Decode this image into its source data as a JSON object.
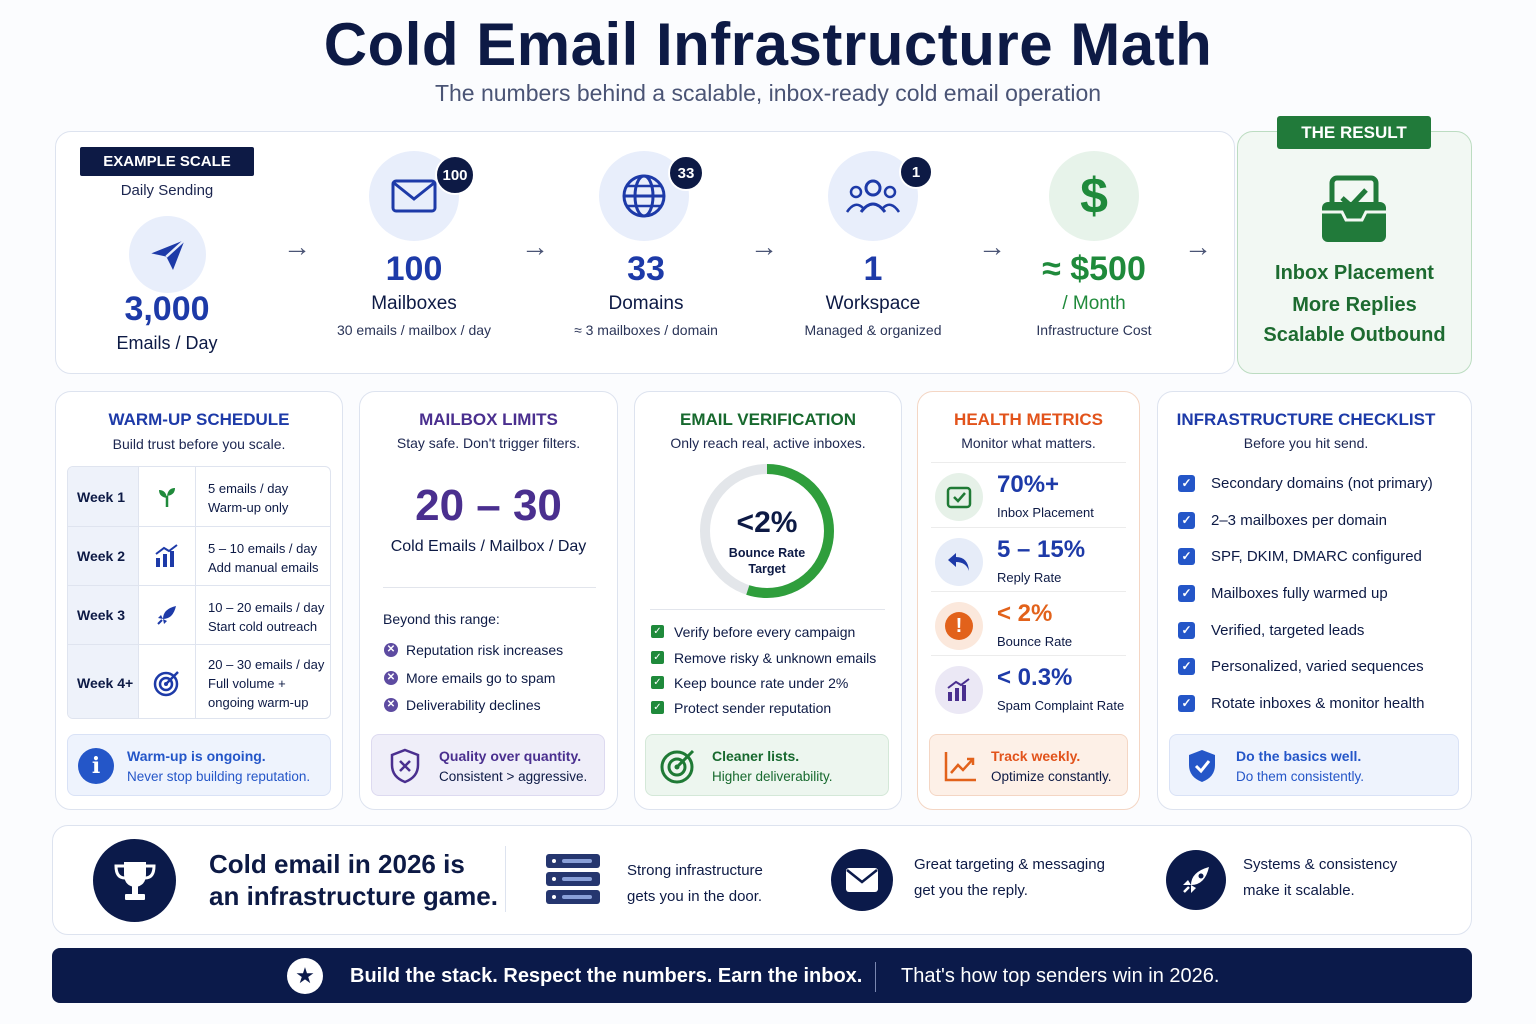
{
  "header": {
    "title": "Cold Email Infrastructure Math",
    "subtitle": "The numbers behind a scalable, inbox-ready cold email operation"
  },
  "example_scale": {
    "badge": "EXAMPLE SCALE",
    "label": "Daily Sending",
    "value": "3,000",
    "unit": "Emails / Day"
  },
  "pipeline": [
    {
      "icon": "envelope-icon",
      "badge": "100",
      "value": "100",
      "label": "Mailboxes",
      "sub": "30 emails / mailbox / day"
    },
    {
      "icon": "globe-icon",
      "badge": "33",
      "value": "33",
      "label": "Domains",
      "sub": "≈ 3 mailboxes / domain"
    },
    {
      "icon": "users-icon",
      "badge": "1",
      "value": "1",
      "label": "Workspace",
      "sub": "Managed & organized"
    },
    {
      "icon": "dollar-icon",
      "value": "≈ $500",
      "label": "/ Month",
      "sub": "Infrastructure Cost"
    }
  ],
  "result": {
    "badge": "THE RESULT",
    "lines": [
      "Inbox Placement",
      "More Replies",
      "Scalable Outbound"
    ]
  },
  "warmup": {
    "title": "WARM-UP SCHEDULE",
    "subtitle": "Build trust before you scale.",
    "rows": [
      {
        "week": "Week 1",
        "icon": "sprout-icon",
        "line1": "5 emails / day",
        "line2": "Warm-up only",
        "line3": ""
      },
      {
        "week": "Week 2",
        "icon": "bar-chart-icon",
        "line1": "5 – 10 emails / day",
        "line2": "Add manual emails",
        "line3": ""
      },
      {
        "week": "Week 3",
        "icon": "rocket-icon",
        "line1": "10 – 20 emails / day",
        "line2": "Start cold outreach",
        "line3": ""
      },
      {
        "week": "Week 4+",
        "icon": "target-icon",
        "line1": "20 – 30 emails / day",
        "line2": "Full volume +",
        "line3": "ongoing warm-up"
      }
    ],
    "note_title": "Warm-up is ongoing.",
    "note_text": "Never stop building reputation."
  },
  "limits": {
    "title": "MAILBOX LIMITS",
    "subtitle": "Stay safe. Don't trigger filters.",
    "value": "20 – 30",
    "unit": "Cold Emails / Mailbox / Day",
    "beyond": "Beyond this range:",
    "risks": [
      "Reputation risk increases",
      "More emails go to spam",
      "Deliverability declines"
    ],
    "note_title": "Quality over quantity.",
    "note_text": "Consistent > aggressive."
  },
  "verification": {
    "title": "EMAIL VERIFICATION",
    "subtitle": "Only reach real, active inboxes.",
    "gauge_value": "<2%",
    "gauge_label1": "Bounce Rate",
    "gauge_label2": "Target",
    "gauge_fill": 0.55,
    "items": [
      "Verify before every campaign",
      "Remove risky & unknown emails",
      "Keep bounce rate under 2%",
      "Protect sender reputation"
    ],
    "note_title": "Cleaner lists.",
    "note_text": "Higher deliverability."
  },
  "health": {
    "title": "HEALTH METRICS",
    "subtitle": "Monitor what matters.",
    "metrics": [
      {
        "icon": "inbox-check-icon",
        "value": "70%+",
        "label": "Inbox Placement",
        "color": "#1d3aa8"
      },
      {
        "icon": "reply-icon",
        "value": "5 – 15%",
        "label": "Reply Rate",
        "color": "#1d3aa8"
      },
      {
        "icon": "alert-icon",
        "value": "< 2%",
        "label": "Bounce Rate",
        "color": "#e2621b"
      },
      {
        "icon": "chart-icon",
        "value": "< 0.3%",
        "label": "Spam Complaint Rate",
        "color": "#1d3aa8"
      }
    ],
    "note_title": "Track weekly.",
    "note_text": "Optimize constantly."
  },
  "checklist": {
    "title": "INFRASTRUCTURE CHECKLIST",
    "subtitle": "Before you hit send.",
    "items": [
      "Secondary domains (not primary)",
      "2–3 mailboxes per domain",
      "SPF, DKIM, DMARC configured",
      "Mailboxes fully warmed up",
      "Verified, targeted leads",
      "Personalized, varied sequences",
      "Rotate inboxes & monitor health"
    ],
    "note_title": "Do the basics well.",
    "note_text": "Do them consistently."
  },
  "bottom": {
    "headline1": "Cold email in 2026 is",
    "headline2": "an infrastructure game.",
    "points": [
      {
        "icon": "server-icon",
        "line1": "Strong infrastructure",
        "line2": "gets you in the door."
      },
      {
        "icon": "mail-icon",
        "line1": "Great targeting & messaging",
        "line2": "get you the reply."
      },
      {
        "icon": "rocket-icon",
        "line1": "Systems & consistency",
        "line2": "make it scalable."
      }
    ]
  },
  "footer": {
    "bold": "Build the stack. Respect the numbers. Earn the inbox.",
    "regular": "That's how top senders win in 2026."
  },
  "colors": {
    "navy": "#0d1a45",
    "blue": "#1d3aa8",
    "green": "#1f8a3b",
    "orange": "#e2621b",
    "purple": "#4a2f8f"
  }
}
